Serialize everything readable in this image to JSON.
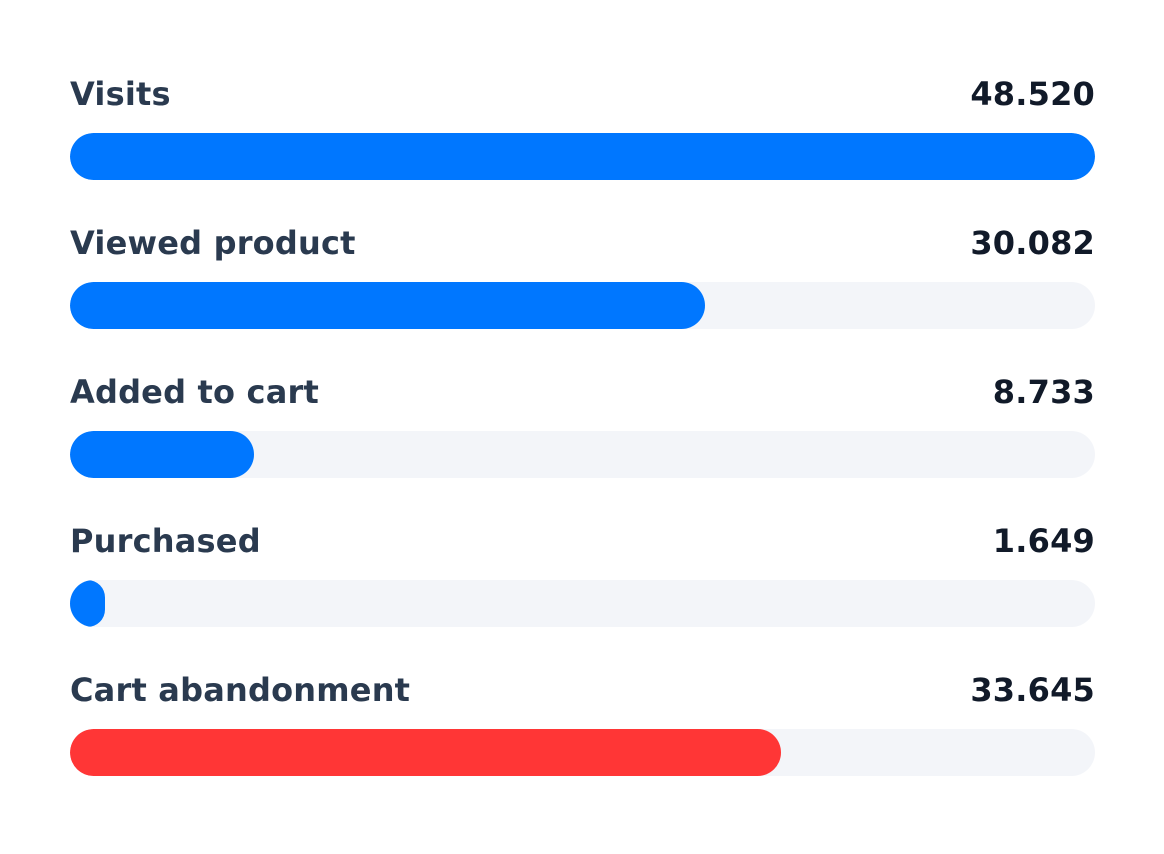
{
  "chart_data": {
    "type": "bar",
    "orientation": "horizontal",
    "max": 48520,
    "colors": {
      "primary": "#0077ff",
      "negative": "#ff3636",
      "track": "#f3f5f9"
    },
    "rows": [
      {
        "label": "Visits",
        "value_text": "48.520",
        "value": 48520,
        "color": "#0077ff"
      },
      {
        "label": "Viewed product",
        "value_text": "30.082",
        "value": 30082,
        "color": "#0077ff"
      },
      {
        "label": "Added to cart",
        "value_text": "8.733",
        "value": 8733,
        "color": "#0077ff"
      },
      {
        "label": "Purchased",
        "value_text": "1.649",
        "value": 1649,
        "color": "#0077ff"
      },
      {
        "label": "Cart abandonment",
        "value_text": "33.645",
        "value": 33645,
        "color": "#ff3636"
      }
    ]
  }
}
